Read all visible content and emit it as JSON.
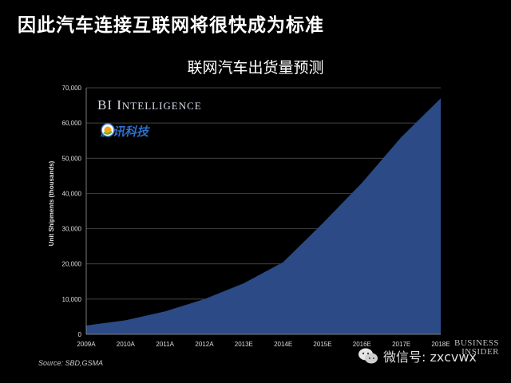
{
  "slide": {
    "title": "因此汽车连接互联网将很快成为标准"
  },
  "chart_data": {
    "type": "area",
    "title": "联网汽车出货量预测",
    "xlabel": "",
    "ylabel": "Unit Shipments (thousands)",
    "categories": [
      "2009A",
      "2010A",
      "2011A",
      "2012A",
      "2013E",
      "2014E",
      "2015E",
      "2016E",
      "2017E",
      "2018E"
    ],
    "values": [
      2500,
      4000,
      6500,
      10000,
      14500,
      20500,
      31500,
      43000,
      56000,
      67000
    ],
    "ylim": [
      0,
      70000
    ],
    "yticks": [
      "0",
      "10,000",
      "20,000",
      "30,000",
      "40,000",
      "50,000",
      "60,000",
      "70,000"
    ],
    "grid": true,
    "fill_color": "#2b4a86"
  },
  "branding": {
    "bi_intelligence_b": "BI",
    "bi_intelligence_i": "I",
    "bi_intelligence_rest": "NTELLIGENCE",
    "tencent_text": "腾讯科技",
    "source": "Source: SBD,GSMA",
    "wechat_label": "微信号: zxcvwx",
    "business_insider_line1": "BUSINESS",
    "business_insider_line2": "INSIDER"
  }
}
